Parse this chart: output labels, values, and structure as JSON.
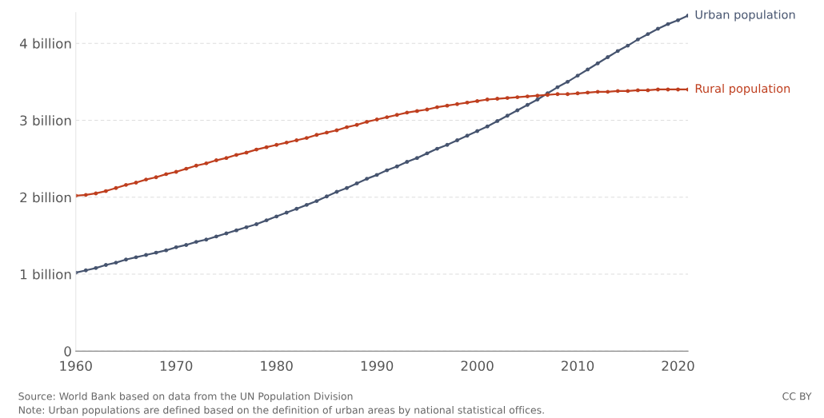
{
  "chart_data": {
    "type": "line",
    "x": [
      1960,
      1961,
      1962,
      1963,
      1964,
      1965,
      1966,
      1967,
      1968,
      1969,
      1970,
      1971,
      1972,
      1973,
      1974,
      1975,
      1976,
      1977,
      1978,
      1979,
      1980,
      1981,
      1982,
      1983,
      1984,
      1985,
      1986,
      1987,
      1988,
      1989,
      1990,
      1991,
      1992,
      1993,
      1994,
      1995,
      1996,
      1997,
      1998,
      1999,
      2000,
      2001,
      2002,
      2003,
      2004,
      2005,
      2006,
      2007,
      2008,
      2009,
      2010,
      2011,
      2012,
      2013,
      2014,
      2015,
      2016,
      2017,
      2018,
      2019,
      2020,
      2021
    ],
    "series": [
      {
        "name": "Urban population",
        "color": "#46546f",
        "values": [
          1.02,
          1.05,
          1.08,
          1.12,
          1.15,
          1.19,
          1.22,
          1.25,
          1.28,
          1.31,
          1.35,
          1.38,
          1.42,
          1.45,
          1.49,
          1.53,
          1.57,
          1.61,
          1.65,
          1.7,
          1.75,
          1.8,
          1.85,
          1.9,
          1.95,
          2.01,
          2.07,
          2.12,
          2.18,
          2.24,
          2.29,
          2.35,
          2.4,
          2.46,
          2.51,
          2.57,
          2.63,
          2.68,
          2.74,
          2.8,
          2.86,
          2.92,
          2.99,
          3.06,
          3.13,
          3.2,
          3.27,
          3.35,
          3.43,
          3.5,
          3.58,
          3.66,
          3.74,
          3.82,
          3.9,
          3.97,
          4.05,
          4.12,
          4.19,
          4.25,
          4.3,
          4.36
        ]
      },
      {
        "name": "Rural population",
        "color": "#bf3f1f",
        "values": [
          2.02,
          2.03,
          2.05,
          2.08,
          2.12,
          2.16,
          2.19,
          2.23,
          2.26,
          2.3,
          2.33,
          2.37,
          2.41,
          2.44,
          2.48,
          2.51,
          2.55,
          2.58,
          2.62,
          2.65,
          2.68,
          2.71,
          2.74,
          2.77,
          2.81,
          2.84,
          2.87,
          2.91,
          2.94,
          2.98,
          3.01,
          3.04,
          3.07,
          3.1,
          3.12,
          3.14,
          3.17,
          3.19,
          3.21,
          3.23,
          3.25,
          3.27,
          3.28,
          3.29,
          3.3,
          3.31,
          3.32,
          3.33,
          3.34,
          3.34,
          3.35,
          3.36,
          3.37,
          3.37,
          3.38,
          3.38,
          3.39,
          3.39,
          3.4,
          3.4,
          3.4,
          3.4
        ]
      }
    ],
    "xlim": [
      1960,
      2021
    ],
    "xticks": [
      1960,
      1970,
      1980,
      1990,
      2000,
      2010,
      2020
    ],
    "ylim": [
      0,
      4.4
    ],
    "yticks": [
      0,
      {
        "value": 1,
        "label": "1 billion"
      },
      {
        "value": 2,
        "label": "2 billion"
      },
      {
        "value": 3,
        "label": "3 billion"
      },
      {
        "value": 4,
        "label": "4 billion"
      }
    ],
    "grid": "y",
    "legend": false,
    "marker": "circle",
    "line_style": "solid",
    "annotations": [
      "Source: World Bank based on data from the UN Population Division",
      "Note: Urban populations are defined based on the definition of urban areas by national statistical offices.",
      "CC BY"
    ]
  }
}
